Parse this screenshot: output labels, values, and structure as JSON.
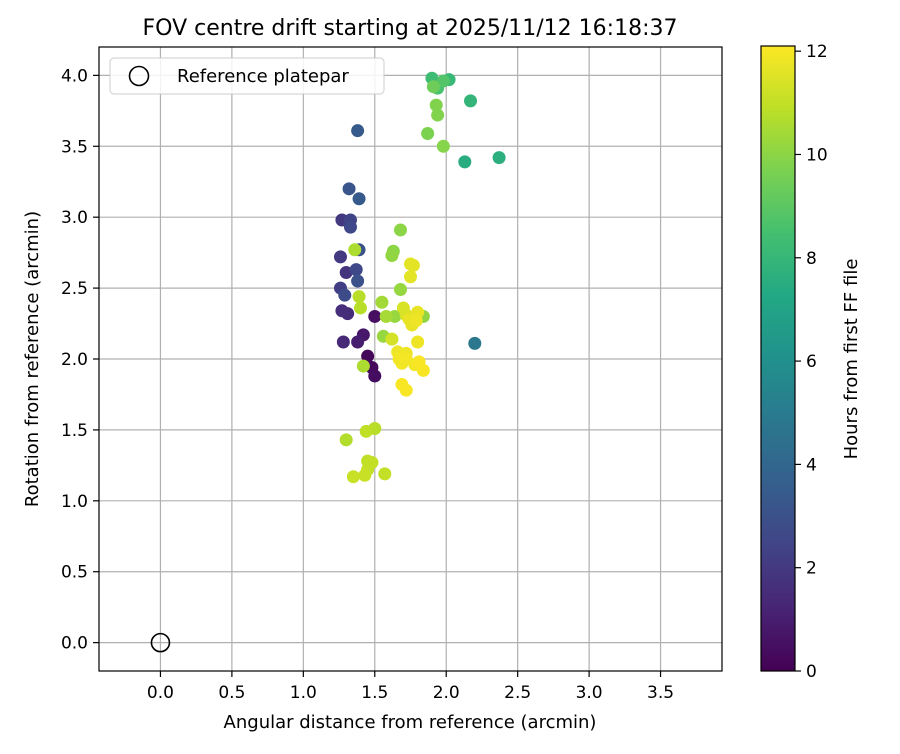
{
  "chart_data": {
    "type": "scatter",
    "title": "FOV centre drift starting at 2025/11/12 16:18:37",
    "xlabel": "Angular distance from reference (arcmin)",
    "ylabel": "Rotation from reference (arcmin)",
    "xlim": [
      -0.43,
      3.93
    ],
    "ylim": [
      -0.2,
      4.2
    ],
    "x_ticks": [
      "0.0",
      "0.5",
      "1.0",
      "1.5",
      "2.0",
      "2.5",
      "3.0",
      "3.5"
    ],
    "y_ticks": [
      "0.0",
      "0.5",
      "1.0",
      "1.5",
      "2.0",
      "2.5",
      "3.0",
      "3.5",
      "4.0"
    ],
    "grid": true,
    "legend": {
      "placement": "upper-left",
      "entries": [
        {
          "label": "Reference platepar",
          "marker": "open-circle"
        }
      ]
    },
    "reference_point": {
      "x": 0.0,
      "y": 0.0
    },
    "colorbar": {
      "label": "Hours from first FF file",
      "range": [
        0,
        12.1
      ],
      "ticks": [
        "0",
        "2",
        "4",
        "6",
        "8",
        "10",
        "12"
      ],
      "colormap": "viridis"
    },
    "points": [
      {
        "x": 1.45,
        "y": 2.02,
        "h": 0.2
      },
      {
        "x": 1.48,
        "y": 1.94,
        "h": 0.3
      },
      {
        "x": 1.5,
        "y": 1.88,
        "h": 0.4
      },
      {
        "x": 1.5,
        "y": 2.3,
        "h": 0.5
      },
      {
        "x": 1.42,
        "y": 2.17,
        "h": 0.8
      },
      {
        "x": 1.38,
        "y": 2.12,
        "h": 1.0
      },
      {
        "x": 1.28,
        "y": 2.12,
        "h": 1.4
      },
      {
        "x": 1.31,
        "y": 2.32,
        "h": 1.5
      },
      {
        "x": 1.27,
        "y": 2.34,
        "h": 1.6
      },
      {
        "x": 1.3,
        "y": 2.61,
        "h": 1.8
      },
      {
        "x": 1.26,
        "y": 2.72,
        "h": 2.0
      },
      {
        "x": 1.27,
        "y": 2.98,
        "h": 2.0
      },
      {
        "x": 1.26,
        "y": 2.5,
        "h": 2.2
      },
      {
        "x": 1.33,
        "y": 2.98,
        "h": 2.4
      },
      {
        "x": 1.33,
        "y": 2.93,
        "h": 2.6
      },
      {
        "x": 1.37,
        "y": 2.63,
        "h": 2.6
      },
      {
        "x": 1.29,
        "y": 2.45,
        "h": 2.8
      },
      {
        "x": 1.38,
        "y": 2.55,
        "h": 3.0
      },
      {
        "x": 1.39,
        "y": 2.77,
        "h": 3.0
      },
      {
        "x": 1.32,
        "y": 3.2,
        "h": 3.2
      },
      {
        "x": 1.38,
        "y": 3.61,
        "h": 3.4
      },
      {
        "x": 1.39,
        "y": 3.13,
        "h": 3.4
      },
      {
        "x": 2.2,
        "y": 2.11,
        "h": 4.8
      },
      {
        "x": 2.13,
        "y": 3.39,
        "h": 7.5
      },
      {
        "x": 2.37,
        "y": 3.42,
        "h": 7.6
      },
      {
        "x": 2.17,
        "y": 3.82,
        "h": 7.9
      },
      {
        "x": 2.02,
        "y": 3.97,
        "h": 8.1
      },
      {
        "x": 1.9,
        "y": 3.98,
        "h": 8.3
      },
      {
        "x": 1.94,
        "y": 3.91,
        "h": 8.6
      },
      {
        "x": 1.98,
        "y": 3.96,
        "h": 8.8
      },
      {
        "x": 1.91,
        "y": 3.92,
        "h": 9.4
      },
      {
        "x": 1.87,
        "y": 3.59,
        "h": 9.7
      },
      {
        "x": 1.93,
        "y": 3.79,
        "h": 9.8
      },
      {
        "x": 1.94,
        "y": 3.72,
        "h": 9.8
      },
      {
        "x": 1.98,
        "y": 3.5,
        "h": 9.9
      },
      {
        "x": 1.68,
        "y": 2.91,
        "h": 10.0
      },
      {
        "x": 1.63,
        "y": 2.76,
        "h": 10.0
      },
      {
        "x": 1.62,
        "y": 2.73,
        "h": 10.1
      },
      {
        "x": 1.68,
        "y": 2.49,
        "h": 10.2
      },
      {
        "x": 1.84,
        "y": 2.3,
        "h": 10.1
      },
      {
        "x": 1.64,
        "y": 2.3,
        "h": 10.2
      },
      {
        "x": 1.56,
        "y": 2.16,
        "h": 10.2
      },
      {
        "x": 1.55,
        "y": 2.4,
        "h": 10.4
      },
      {
        "x": 1.58,
        "y": 2.3,
        "h": 10.5
      },
      {
        "x": 1.36,
        "y": 2.77,
        "h": 10.6
      },
      {
        "x": 1.39,
        "y": 2.44,
        "h": 10.8
      },
      {
        "x": 1.4,
        "y": 2.36,
        "h": 10.8
      },
      {
        "x": 1.42,
        "y": 1.95,
        "h": 10.6
      },
      {
        "x": 1.3,
        "y": 1.43,
        "h": 10.7
      },
      {
        "x": 1.5,
        "y": 1.51,
        "h": 10.8
      },
      {
        "x": 1.44,
        "y": 1.49,
        "h": 10.9
      },
      {
        "x": 1.45,
        "y": 1.28,
        "h": 10.9
      },
      {
        "x": 1.48,
        "y": 1.27,
        "h": 11.0
      },
      {
        "x": 1.45,
        "y": 1.22,
        "h": 11.0
      },
      {
        "x": 1.43,
        "y": 1.18,
        "h": 11.1
      },
      {
        "x": 1.35,
        "y": 1.17,
        "h": 11.1
      },
      {
        "x": 1.57,
        "y": 1.19,
        "h": 11.0
      },
      {
        "x": 1.62,
        "y": 2.14,
        "h": 11.3
      },
      {
        "x": 1.7,
        "y": 2.36,
        "h": 11.4
      },
      {
        "x": 1.72,
        "y": 2.31,
        "h": 11.4
      },
      {
        "x": 1.75,
        "y": 2.67,
        "h": 11.6
      },
      {
        "x": 1.77,
        "y": 2.66,
        "h": 11.6
      },
      {
        "x": 1.75,
        "y": 2.58,
        "h": 11.6
      },
      {
        "x": 1.74,
        "y": 2.28,
        "h": 11.7
      },
      {
        "x": 1.76,
        "y": 2.24,
        "h": 11.7
      },
      {
        "x": 1.8,
        "y": 2.33,
        "h": 11.7
      },
      {
        "x": 1.79,
        "y": 2.27,
        "h": 11.8
      },
      {
        "x": 1.8,
        "y": 2.12,
        "h": 11.8
      },
      {
        "x": 1.66,
        "y": 2.05,
        "h": 11.8
      },
      {
        "x": 1.72,
        "y": 2.04,
        "h": 11.8
      },
      {
        "x": 1.67,
        "y": 2.0,
        "h": 11.9
      },
      {
        "x": 1.69,
        "y": 1.97,
        "h": 11.9
      },
      {
        "x": 1.72,
        "y": 2.0,
        "h": 11.9
      },
      {
        "x": 1.78,
        "y": 1.96,
        "h": 11.9
      },
      {
        "x": 1.81,
        "y": 1.98,
        "h": 12.0
      },
      {
        "x": 1.84,
        "y": 1.92,
        "h": 12.0
      },
      {
        "x": 1.69,
        "y": 1.82,
        "h": 12.0
      },
      {
        "x": 1.72,
        "y": 1.78,
        "h": 12.0
      }
    ]
  }
}
